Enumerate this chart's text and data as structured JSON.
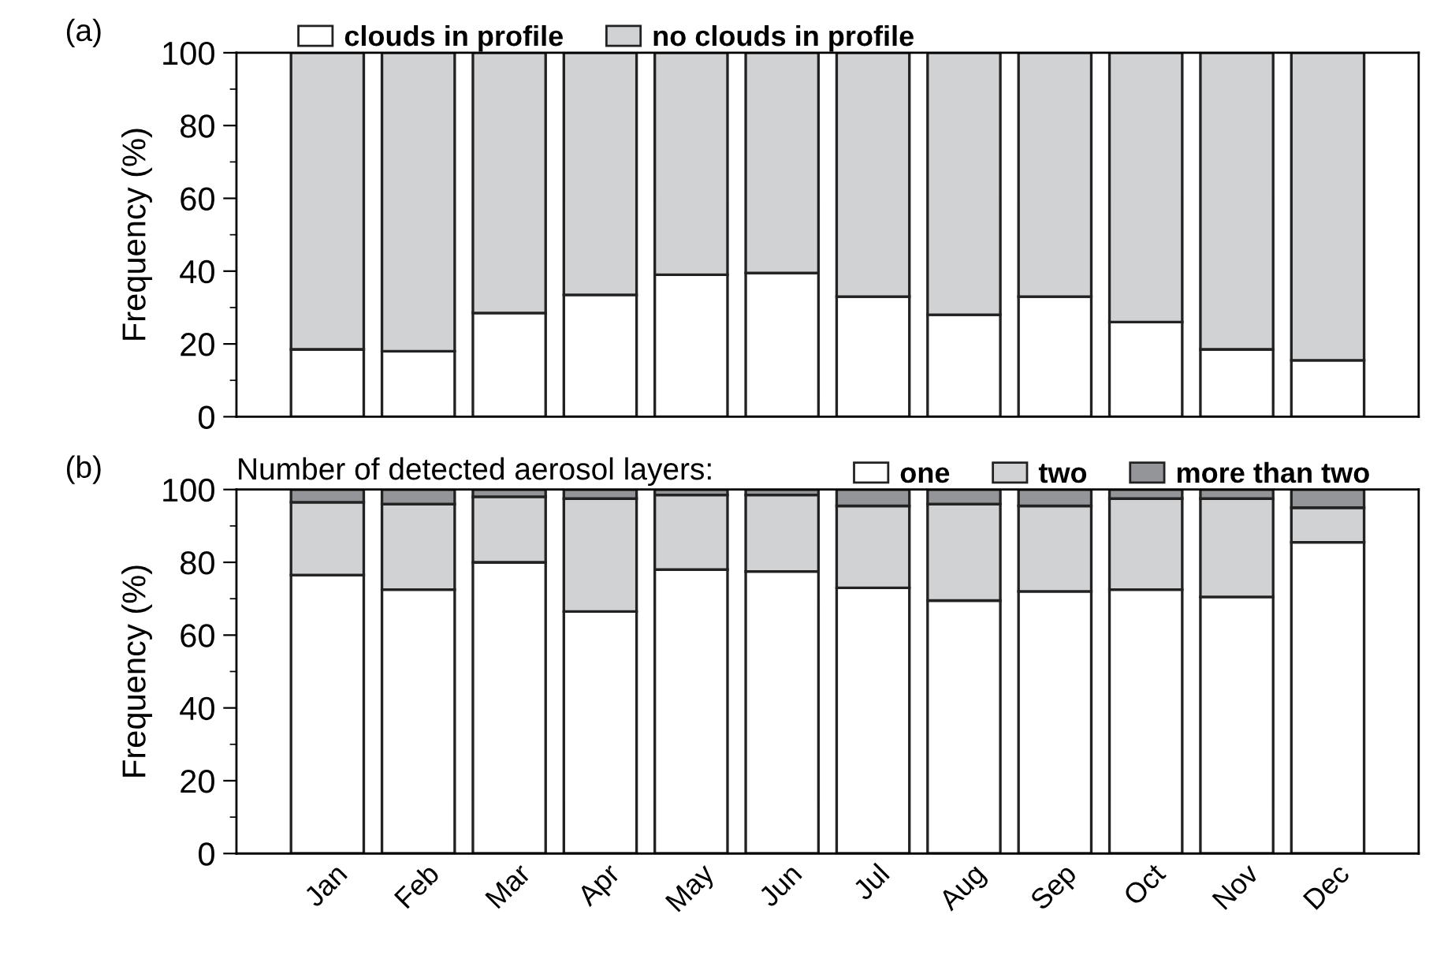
{
  "chart_data": [
    {
      "type": "bar",
      "title": "(a)",
      "ylabel": "Frequency (%)",
      "stacked": true,
      "legend": "top",
      "tick_labels": "y",
      "categories": [
        null,
        null,
        null,
        null,
        null,
        null,
        null,
        null,
        null,
        null,
        null,
        null
      ],
      "ylim": [
        0,
        100
      ],
      "yticks": [
        0,
        {
          "value": 10,
          "label": null
        },
        20,
        {
          "value": 30,
          "label": null
        },
        40,
        {
          "value": 50,
          "label": null
        },
        60,
        {
          "value": 70,
          "label": null
        },
        80,
        {
          "value": 90,
          "label": null
        },
        100
      ],
      "series": [
        {
          "name": "clouds in profile",
          "color": "#ffffff",
          "values": [
            18.5,
            18,
            28.5,
            33.5,
            39,
            39.5,
            33,
            28,
            33,
            26,
            18.5,
            15.5
          ]
        },
        {
          "name": "no clouds in profile",
          "color": "#d1d2d4",
          "values": [
            81.5,
            82,
            71.5,
            66.5,
            61,
            60.5,
            67,
            72,
            67,
            74,
            81.5,
            84.5
          ]
        }
      ]
    },
    {
      "type": "bar",
      "title": "(b)",
      "ylabel": "Frequency (%)",
      "stacked": true,
      "legend": "top",
      "legend_title": "Number of detected aerosol layers:",
      "categories": [
        "Jan",
        "Feb",
        "Mar",
        "Apr",
        "May",
        "Jun",
        "Jul",
        "Aug",
        "Sep",
        "Oct",
        "Nov",
        "Dec"
      ],
      "ylim": [
        0,
        100
      ],
      "yticks": [
        0,
        {
          "value": 10,
          "label": null
        },
        20,
        {
          "value": 30,
          "label": null
        },
        40,
        {
          "value": 50,
          "label": null
        },
        60,
        {
          "value": 70,
          "label": null
        },
        80,
        {
          "value": 90,
          "label": null
        },
        100
      ],
      "series": [
        {
          "name": "one",
          "color": "#ffffff",
          "values": [
            76.5,
            72.5,
            80,
            66.5,
            78,
            77.5,
            73,
            69.5,
            72,
            72.5,
            70.5,
            85.5
          ]
        },
        {
          "name": "two",
          "color": "#d1d2d4",
          "values": [
            20,
            23.5,
            18,
            31,
            20.5,
            21,
            22.5,
            26.5,
            23.5,
            25,
            27,
            9.5
          ]
        },
        {
          "name": "more than two",
          "color": "#939598",
          "values": [
            3.5,
            4,
            2,
            2.5,
            1.5,
            1.5,
            4.5,
            4,
            4.5,
            2.5,
            2.5,
            5
          ]
        }
      ]
    }
  ]
}
